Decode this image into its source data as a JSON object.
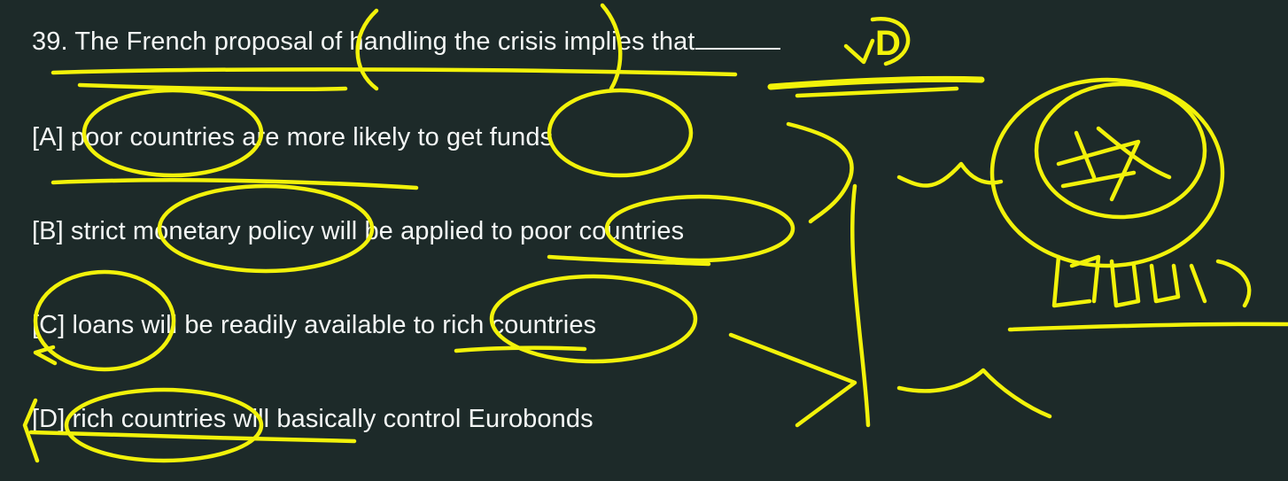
{
  "question": {
    "number_text": "39. The French proposal of handling the crisis implies that",
    "answer_mark": "D"
  },
  "options": [
    {
      "text": "[A] poor countries are more likely to get funds"
    },
    {
      "text": "[B] strict monetary policy will be applied to poor countries"
    },
    {
      "text": "[C] loans will be readily available to rich countries"
    },
    {
      "text": "[D] rich countries will basically control Eurobonds"
    }
  ],
  "annotation_colors": {
    "ink": "#f2f20a",
    "background": "#1d2a29",
    "text": "#f4f6f5"
  }
}
